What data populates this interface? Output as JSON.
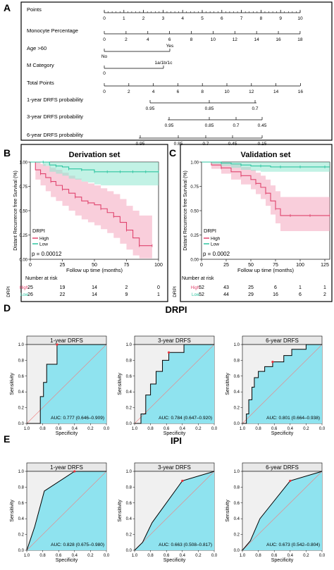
{
  "colors": {
    "high": "#f4a6bd",
    "high_line": "#e0446e",
    "low": "#8fe8cf",
    "low_line": "#2ec4a0",
    "roc_fill": "#8fe3ef",
    "roc_bg": "#f0f0f0",
    "ref_line": "#f08080",
    "cutoff_point": "#e8323c",
    "panel_border": "#000000"
  },
  "panels": {
    "A": "A",
    "B": "B",
    "C": "C",
    "D": "D",
    "E": "E"
  },
  "nomogram": {
    "rows": [
      {
        "label": "Points",
        "ticks": [
          "0",
          "1",
          "2",
          "3",
          "4",
          "5",
          "6",
          "7",
          "8",
          "9",
          "10"
        ]
      },
      {
        "label": "Monocyte Percentage",
        "ticks": [
          "0",
          "2",
          "4",
          "6",
          "8",
          "10",
          "12",
          "14",
          "16",
          "18"
        ]
      },
      {
        "label": "Age >60",
        "ticks": [
          "No",
          "Yes"
        ]
      },
      {
        "label": "M Category",
        "ticks": [
          "0",
          "1a/1b/1c"
        ]
      },
      {
        "label": "Total Points",
        "ticks": [
          "0",
          "2",
          "4",
          "6",
          "8",
          "10",
          "12",
          "14",
          "16"
        ]
      },
      {
        "label": "1-year DRFS probability",
        "ticks": [
          "0.95",
          "0.85",
          "0.7"
        ]
      },
      {
        "label": "3-year DRFS probability",
        "ticks": [
          "0.95",
          "0.85",
          "0.7",
          "0.45"
        ]
      },
      {
        "label": "6-year DRFS probability",
        "ticks": [
          "0.95",
          "0.85",
          "0.7",
          "0.45",
          "0.15"
        ]
      }
    ]
  },
  "chart_data": [
    {
      "type": "line",
      "panel": "B",
      "title": "Derivation set",
      "xlabel": "Follow up time (months)",
      "ylabel": "Distant Recurrence free Survival (%)",
      "xlim": [
        0,
        100
      ],
      "ylim": [
        0,
        1
      ],
      "xticks": [
        "0",
        "25",
        "50",
        "75",
        "100"
      ],
      "yticks": [
        "0.00",
        "0.25",
        "0.50",
        "0.75",
        "1.00"
      ],
      "legend_title": "DRPI",
      "legend": [
        "High",
        "Low"
      ],
      "pvalue": "p = 0.00012",
      "series": [
        {
          "name": "High",
          "x": [
            0,
            4,
            8,
            12,
            16,
            20,
            25,
            30,
            35,
            40,
            45,
            50,
            55,
            60,
            65,
            70,
            75,
            80,
            85,
            90,
            95
          ],
          "y": [
            1.0,
            0.92,
            0.88,
            0.84,
            0.8,
            0.76,
            0.72,
            0.68,
            0.64,
            0.6,
            0.58,
            0.56,
            0.52,
            0.48,
            0.44,
            0.38,
            0.3,
            0.22,
            0.14,
            0.14,
            0.14
          ],
          "lower": [
            1.0,
            0.82,
            0.76,
            0.7,
            0.64,
            0.6,
            0.55,
            0.5,
            0.45,
            0.41,
            0.38,
            0.35,
            0.31,
            0.27,
            0.22,
            0.16,
            0.1,
            0.04,
            0.01,
            0.01,
            0.01
          ],
          "upper": [
            1.0,
            1.0,
            0.98,
            0.96,
            0.94,
            0.92,
            0.89,
            0.86,
            0.83,
            0.8,
            0.78,
            0.76,
            0.73,
            0.7,
            0.67,
            0.62,
            0.55,
            0.5,
            0.45,
            0.45,
            0.45
          ]
        },
        {
          "name": "Low",
          "x": [
            0,
            5,
            10,
            15,
            20,
            25,
            30,
            35,
            40,
            45,
            50,
            55,
            60,
            65,
            70,
            75,
            80,
            85,
            90,
            95,
            100
          ],
          "y": [
            1.0,
            1.0,
            1.0,
            0.97,
            0.96,
            0.95,
            0.93,
            0.93,
            0.92,
            0.92,
            0.9,
            0.9,
            0.9,
            0.9,
            0.9,
            0.9,
            0.9,
            0.9,
            0.9,
            0.9,
            0.9
          ],
          "lower": [
            1.0,
            1.0,
            0.96,
            0.9,
            0.88,
            0.86,
            0.83,
            0.82,
            0.8,
            0.79,
            0.77,
            0.76,
            0.76,
            0.76,
            0.76,
            0.76,
            0.76,
            0.76,
            0.76,
            0.76,
            0.76
          ],
          "upper": [
            1.0,
            1.0,
            1.0,
            1.0,
            1.0,
            1.0,
            1.0,
            1.0,
            1.0,
            1.0,
            1.0,
            1.0,
            1.0,
            1.0,
            1.0,
            1.0,
            1.0,
            1.0,
            1.0,
            1.0,
            1.0
          ]
        }
      ],
      "risk_table": {
        "title": "Number at risk",
        "ylabel": "DRPI",
        "x": [
          "0",
          "25",
          "50",
          "75",
          "100"
        ],
        "rows": [
          {
            "name": "High",
            "values": [
              "25",
              "19",
              "14",
              "2",
              "0"
            ]
          },
          {
            "name": "Low",
            "values": [
              "26",
              "22",
              "14",
              "9",
              "1"
            ]
          }
        ]
      }
    },
    {
      "type": "line",
      "panel": "C",
      "title": "Validation set",
      "xlabel": "Follow up time (months)",
      "ylabel": "Distant Recurrence free Survival (%)",
      "xlim": [
        0,
        130
      ],
      "ylim": [
        0,
        1
      ],
      "xticks": [
        "0",
        "25",
        "50",
        "75",
        "100",
        "125"
      ],
      "yticks": [
        "0.00",
        "0.25",
        "0.50",
        "0.75",
        "1.00"
      ],
      "legend_title": "DRPI",
      "legend": [
        "High",
        "Low"
      ],
      "pvalue": "p = 0.0002",
      "series": [
        {
          "name": "High",
          "x": [
            0,
            10,
            20,
            30,
            40,
            50,
            55,
            60,
            65,
            70,
            75,
            80,
            90,
            100,
            110,
            125,
            130
          ],
          "y": [
            1.0,
            0.97,
            0.94,
            0.9,
            0.86,
            0.82,
            0.78,
            0.74,
            0.68,
            0.6,
            0.52,
            0.45,
            0.45,
            0.45,
            0.45,
            0.45,
            0.45
          ],
          "lower": [
            1.0,
            0.93,
            0.88,
            0.82,
            0.77,
            0.72,
            0.67,
            0.62,
            0.55,
            0.46,
            0.37,
            0.29,
            0.29,
            0.29,
            0.29,
            0.29,
            0.29
          ],
          "upper": [
            1.0,
            1.0,
            1.0,
            0.98,
            0.95,
            0.92,
            0.89,
            0.86,
            0.82,
            0.76,
            0.7,
            0.64,
            0.64,
            0.64,
            0.64,
            0.64,
            0.64
          ]
        },
        {
          "name": "Low",
          "x": [
            0,
            10,
            20,
            30,
            40,
            50,
            60,
            70,
            80,
            90,
            100,
            110,
            125,
            130
          ],
          "y": [
            1.0,
            1.0,
            0.99,
            0.98,
            0.97,
            0.96,
            0.96,
            0.95,
            0.95,
            0.95,
            0.95,
            0.95,
            0.95,
            0.95
          ],
          "lower": [
            1.0,
            0.98,
            0.96,
            0.94,
            0.92,
            0.91,
            0.9,
            0.9,
            0.9,
            0.9,
            0.9,
            0.9,
            0.9,
            0.9
          ],
          "upper": [
            1.0,
            1.0,
            1.0,
            1.0,
            1.0,
            1.0,
            1.0,
            1.0,
            1.0,
            1.0,
            1.0,
            1.0,
            1.0,
            1.0
          ]
        }
      ],
      "risk_table": {
        "title": "Number at risk",
        "ylabel": "DRPI",
        "x": [
          "0",
          "25",
          "50",
          "75",
          "100",
          "125"
        ],
        "rows": [
          {
            "name": "High",
            "values": [
              "52",
              "43",
              "25",
              "6",
              "1",
              "1"
            ]
          },
          {
            "name": "Low",
            "values": [
              "52",
              "44",
              "29",
              "16",
              "6",
              "2"
            ]
          }
        ]
      }
    },
    {
      "type": "line",
      "panel": "D",
      "group_title": "DRPI",
      "title": "1-year DRFS",
      "xlabel": "Specificity",
      "ylabel": "Sensitivity",
      "xlim": [
        1.0,
        0.0
      ],
      "ylim": [
        0.0,
        1.0
      ],
      "xticks": [
        "1.0",
        "0.8",
        "0.6",
        "0.4",
        "0.2",
        "0.0"
      ],
      "yticks": [
        "0.0",
        "0.2",
        "0.4",
        "0.6",
        "0.8",
        "1.0"
      ],
      "annotation": "AUC: 0.777 (0.646–0.909)",
      "specificity": [
        1.0,
        0.83,
        0.83,
        0.79,
        0.79,
        0.75,
        0.75,
        0.62,
        0.62,
        0.0
      ],
      "sensitivity": [
        0.0,
        0.0,
        0.34,
        0.34,
        0.52,
        0.52,
        0.75,
        0.75,
        1.0,
        1.0
      ],
      "cutoff": [
        0.62,
        1.0
      ]
    },
    {
      "type": "line",
      "panel": "D",
      "title": "3-year DRFS",
      "xlabel": "Specificity",
      "ylabel": "Sensitivity",
      "xlim": [
        1.0,
        0.0
      ],
      "ylim": [
        0.0,
        1.0
      ],
      "xticks": [
        "1.0",
        "0.8",
        "0.6",
        "0.4",
        "0.2",
        "0.0"
      ],
      "yticks": [
        "0.0",
        "0.2",
        "0.4",
        "0.6",
        "0.8",
        "1.0"
      ],
      "annotation": "AUC: 0.784 (0.647–0.920)",
      "specificity": [
        1.0,
        0.92,
        0.92,
        0.86,
        0.86,
        0.8,
        0.8,
        0.73,
        0.73,
        0.65,
        0.65,
        0.57,
        0.57,
        0.38,
        0.38,
        0.0
      ],
      "sensitivity": [
        0.0,
        0.0,
        0.12,
        0.12,
        0.36,
        0.36,
        0.5,
        0.5,
        0.66,
        0.66,
        0.8,
        0.8,
        0.9,
        0.9,
        1.0,
        1.0
      ],
      "cutoff": [
        0.57,
        0.9
      ]
    },
    {
      "type": "line",
      "panel": "D",
      "title": "6-year DRFS",
      "xlabel": "Specificity",
      "ylabel": "Sensitivity",
      "xlim": [
        1.0,
        0.0
      ],
      "ylim": [
        0.0,
        1.0
      ],
      "xticks": [
        "1.0",
        "0.8",
        "0.6",
        "0.4",
        "0.2",
        "0.0"
      ],
      "yticks": [
        "0.0",
        "0.2",
        "0.4",
        "0.6",
        "0.8",
        "1.0"
      ],
      "annotation": "AUC: 0.801 (0.664–0.938)",
      "specificity": [
        1.0,
        0.95,
        0.95,
        0.92,
        0.92,
        0.88,
        0.88,
        0.85,
        0.85,
        0.8,
        0.8,
        0.72,
        0.72,
        0.62,
        0.62,
        0.48,
        0.48,
        0.38,
        0.38,
        0.2,
        0.2,
        0.0
      ],
      "sensitivity": [
        0.0,
        0.0,
        0.12,
        0.12,
        0.3,
        0.3,
        0.46,
        0.46,
        0.58,
        0.58,
        0.66,
        0.66,
        0.72,
        0.72,
        0.78,
        0.78,
        0.86,
        0.86,
        0.94,
        0.94,
        1.0,
        1.0
      ],
      "cutoff": [
        0.62,
        0.78
      ]
    },
    {
      "type": "line",
      "panel": "E",
      "group_title": "IPI",
      "title": "1-year DRFS",
      "xlabel": "Specificity",
      "ylabel": "Sensitivity",
      "xlim": [
        1.0,
        0.0
      ],
      "ylim": [
        0.0,
        1.0
      ],
      "xticks": [
        "1.0",
        "0.8",
        "0.6",
        "0.4",
        "0.2",
        "0.0"
      ],
      "yticks": [
        "0.0",
        "0.2",
        "0.4",
        "0.6",
        "0.8",
        "1.0"
      ],
      "annotation": "AUC: 0.828 (0.675–0.980)",
      "specificity": [
        1.0,
        0.9,
        0.78,
        0.4,
        0.0
      ],
      "sensitivity": [
        0.0,
        0.3,
        0.75,
        1.0,
        1.0
      ],
      "cutoff": [
        0.4,
        1.0
      ]
    },
    {
      "type": "line",
      "panel": "E",
      "title": "3-year DRFS",
      "xlabel": "Specificity",
      "ylabel": "Sensitivity",
      "xlim": [
        1.0,
        0.0
      ],
      "ylim": [
        0.0,
        1.0
      ],
      "xticks": [
        "1.0",
        "0.8",
        "0.6",
        "0.4",
        "0.2",
        "0.0"
      ],
      "yticks": [
        "0.0",
        "0.2",
        "0.4",
        "0.6",
        "0.8",
        "1.0"
      ],
      "annotation": "AUC: 0.663 (0.508–0.817)",
      "specificity": [
        1.0,
        0.9,
        0.78,
        0.4,
        0.0
      ],
      "sensitivity": [
        0.0,
        0.1,
        0.35,
        0.88,
        1.0
      ],
      "cutoff": [
        0.4,
        0.88
      ]
    },
    {
      "type": "line",
      "panel": "E",
      "title": "6-year DRFS",
      "xlabel": "Specificity",
      "ylabel": "Sensitivity",
      "xlim": [
        1.0,
        0.0
      ],
      "ylim": [
        0.0,
        1.0
      ],
      "xticks": [
        "1.0",
        "0.8",
        "0.6",
        "0.4",
        "0.2",
        "0.0"
      ],
      "yticks": [
        "0.0",
        "0.2",
        "0.4",
        "0.6",
        "0.8",
        "1.0"
      ],
      "annotation": "AUC: 0.673 (0.542–0.804)",
      "specificity": [
        1.0,
        0.9,
        0.78,
        0.4,
        0.0
      ],
      "sensitivity": [
        0.0,
        0.12,
        0.4,
        0.88,
        1.0
      ],
      "cutoff": [
        0.4,
        0.88
      ]
    }
  ]
}
